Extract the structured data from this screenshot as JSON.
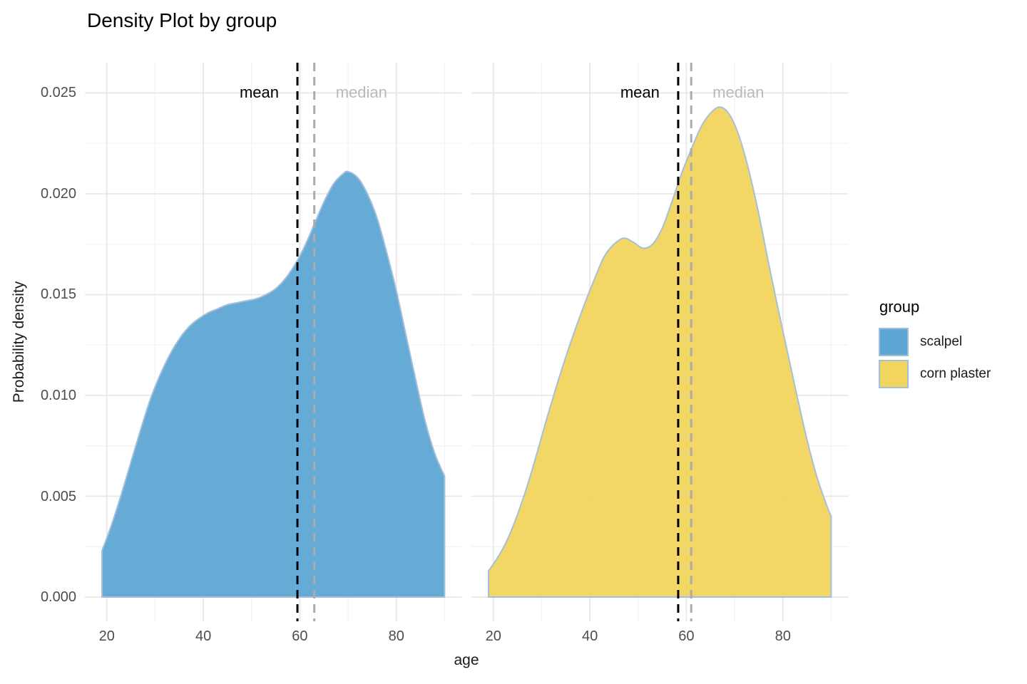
{
  "legend": {
    "title": "group",
    "items": [
      {
        "label": "scalpel",
        "color": "#5ea6d4"
      },
      {
        "label": "corn plaster",
        "color": "#f2d55e"
      }
    ],
    "swatch_border_color": "#9fbfda"
  },
  "annotations": {
    "mean_label": "mean",
    "median_label": "median"
  },
  "chart_data": {
    "type": "area",
    "subtype": "density",
    "title": "Density Plot by group",
    "xlabel": "age",
    "ylabel": "Probability density",
    "x_domain": [
      15.45,
      93.55
    ],
    "y_domain": [
      -0.0012,
      0.0265
    ],
    "x_ticks": [
      20,
      40,
      60,
      80
    ],
    "x_minor_gridlines": [
      30,
      50,
      70,
      90
    ],
    "y_ticks": [
      0,
      0.005,
      0.01,
      0.015,
      0.02,
      0.025
    ],
    "y_tick_labels": [
      "0.000",
      "0.005",
      "0.010",
      "0.015",
      "0.020",
      "0.025"
    ],
    "y_minor_gridlines": [
      0.0025,
      0.0075,
      0.0125,
      0.0175,
      0.0225
    ],
    "grid": {
      "major_color": "#e8e8e8",
      "minor_color": "#f4f4f4"
    },
    "outline_color": "#a6bfda",
    "mean_line_color": "#000000",
    "median_line_color": "#ababab",
    "fill_opacity": 0.95,
    "facets": [
      {
        "name": "scalpel",
        "fill": "#5ea6d4",
        "mean": 59.5,
        "median": 63.0,
        "points": [
          [
            19,
            0.0023
          ],
          [
            21,
            0.0036
          ],
          [
            23,
            0.0051
          ],
          [
            25,
            0.0067
          ],
          [
            27,
            0.0083
          ],
          [
            29,
            0.0098
          ],
          [
            31,
            0.011
          ],
          [
            33,
            0.012
          ],
          [
            35,
            0.0128
          ],
          [
            37,
            0.0134
          ],
          [
            39,
            0.0138
          ],
          [
            41,
            0.0141
          ],
          [
            43,
            0.0143
          ],
          [
            45,
            0.0145
          ],
          [
            47,
            0.0146
          ],
          [
            49,
            0.0147
          ],
          [
            51,
            0.0148
          ],
          [
            53,
            0.015
          ],
          [
            55,
            0.0153
          ],
          [
            57,
            0.0158
          ],
          [
            59,
            0.0165
          ],
          [
            61,
            0.0174
          ],
          [
            63,
            0.0185
          ],
          [
            65,
            0.0196
          ],
          [
            67,
            0.0205
          ],
          [
            69,
            0.021
          ],
          [
            70,
            0.0211
          ],
          [
            72,
            0.0208
          ],
          [
            74,
            0.02
          ],
          [
            76,
            0.0188
          ],
          [
            78,
            0.0171
          ],
          [
            80,
            0.0152
          ],
          [
            82,
            0.013
          ],
          [
            84,
            0.0108
          ],
          [
            86,
            0.0087
          ],
          [
            88,
            0.0071
          ],
          [
            90,
            0.006
          ]
        ]
      },
      {
        "name": "corn plaster",
        "fill": "#f2d55e",
        "mean": 58.3,
        "median": 61.0,
        "points": [
          [
            19,
            0.0013
          ],
          [
            21,
            0.002
          ],
          [
            23,
            0.0029
          ],
          [
            25,
            0.0041
          ],
          [
            27,
            0.0055
          ],
          [
            29,
            0.0071
          ],
          [
            31,
            0.0088
          ],
          [
            33,
            0.0104
          ],
          [
            35,
            0.0119
          ],
          [
            37,
            0.0133
          ],
          [
            39,
            0.0146
          ],
          [
            41,
            0.0158
          ],
          [
            43,
            0.0169
          ],
          [
            45,
            0.0175
          ],
          [
            47,
            0.0178
          ],
          [
            49,
            0.0176
          ],
          [
            51,
            0.0173
          ],
          [
            53,
            0.0175
          ],
          [
            55,
            0.0183
          ],
          [
            57,
            0.0196
          ],
          [
            59,
            0.021
          ],
          [
            61,
            0.0222
          ],
          [
            63,
            0.0233
          ],
          [
            65,
            0.024
          ],
          [
            67,
            0.0243
          ],
          [
            69,
            0.0239
          ],
          [
            71,
            0.0228
          ],
          [
            73,
            0.0211
          ],
          [
            75,
            0.019
          ],
          [
            77,
            0.0166
          ],
          [
            79,
            0.0143
          ],
          [
            81,
            0.0121
          ],
          [
            83,
            0.0099
          ],
          [
            85,
            0.0078
          ],
          [
            87,
            0.006
          ],
          [
            89,
            0.0046
          ],
          [
            90,
            0.004
          ]
        ]
      }
    ]
  }
}
